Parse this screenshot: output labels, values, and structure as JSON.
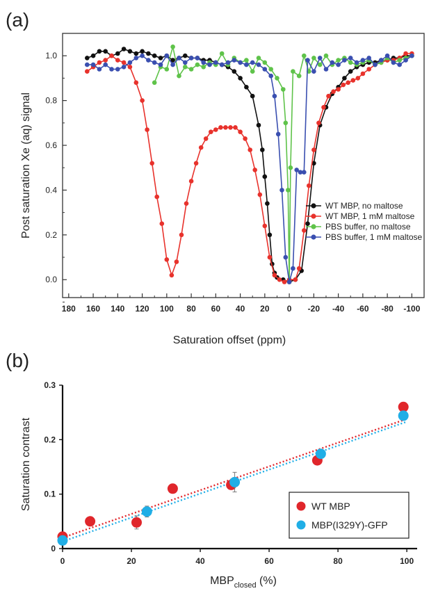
{
  "figure": {
    "panel_a_label": "(a)",
    "panel_b_label": "(b)"
  },
  "colors": {
    "black": "#111111",
    "red": "#e8322c",
    "green": "#5fc34a",
    "blue": "#3a4fb0",
    "cyan": "#20aee6",
    "red_b": "#e0262b"
  },
  "chart_data": [
    {
      "type": "line",
      "title": "",
      "xlabel": "Saturation offset (ppm)",
      "ylabel": "Post saturation Xe (aq) signal",
      "xlim": [
        185,
        -110
      ],
      "ylim": [
        -0.08,
        1.1
      ],
      "xticks": [
        "180",
        "160",
        "140",
        "120",
        "100",
        "80",
        "60",
        "40",
        "20",
        "0",
        "-20",
        "-40",
        "-60",
        "-80",
        "-100"
      ],
      "yticks": [
        "0.0",
        "0.2",
        "0.4",
        "0.6",
        "0.8",
        "1.0"
      ],
      "legend_position": "right",
      "series": [
        {
          "name": "WT MBP, no maltose",
          "color": "#111111",
          "points": [
            [
              165,
              0.99
            ],
            [
              160,
              1.0
            ],
            [
              155,
              1.02
            ],
            [
              150,
              1.02
            ],
            [
              145,
              1.0
            ],
            [
              140,
              1.01
            ],
            [
              135,
              1.03
            ],
            [
              130,
              1.02
            ],
            [
              125,
              1.01
            ],
            [
              120,
              1.02
            ],
            [
              115,
              1.01
            ],
            [
              110,
              1.0
            ],
            [
              105,
              0.99
            ],
            [
              100,
              1.0
            ],
            [
              95,
              0.98
            ],
            [
              90,
              0.99
            ],
            [
              85,
              1.0
            ],
            [
              80,
              0.99
            ],
            [
              75,
              0.99
            ],
            [
              70,
              0.98
            ],
            [
              65,
              0.98
            ],
            [
              60,
              0.97
            ],
            [
              55,
              0.96
            ],
            [
              50,
              0.95
            ],
            [
              45,
              0.93
            ],
            [
              40,
              0.9
            ],
            [
              35,
              0.86
            ],
            [
              30,
              0.82
            ],
            [
              25,
              0.69
            ],
            [
              22,
              0.58
            ],
            [
              20,
              0.46
            ],
            [
              18,
              0.34
            ],
            [
              16,
              0.2
            ],
            [
              14,
              0.07
            ],
            [
              12,
              0.03
            ],
            [
              10,
              0.01
            ],
            [
              5,
              0.0
            ],
            [
              0,
              -0.01
            ],
            [
              -5,
              0.0
            ],
            [
              -10,
              0.04
            ],
            [
              -15,
              0.25
            ],
            [
              -20,
              0.52
            ],
            [
              -25,
              0.69
            ],
            [
              -30,
              0.77
            ],
            [
              -35,
              0.83
            ],
            [
              -40,
              0.86
            ],
            [
              -45,
              0.9
            ],
            [
              -50,
              0.93
            ],
            [
              -55,
              0.95
            ],
            [
              -60,
              0.96
            ],
            [
              -65,
              0.97
            ],
            [
              -70,
              0.97
            ],
            [
              -75,
              0.98
            ],
            [
              -80,
              0.98
            ],
            [
              -85,
              0.99
            ],
            [
              -90,
              0.99
            ],
            [
              -95,
              1.0
            ],
            [
              -100,
              1.0
            ]
          ]
        },
        {
          "name": "WT MBP, 1 mM maltose",
          "color": "#e8322c",
          "points": [
            [
              165,
              0.93
            ],
            [
              160,
              0.95
            ],
            [
              155,
              0.97
            ],
            [
              150,
              0.98
            ],
            [
              145,
              1.0
            ],
            [
              140,
              0.98
            ],
            [
              135,
              0.97
            ],
            [
              130,
              0.95
            ],
            [
              125,
              0.88
            ],
            [
              120,
              0.8
            ],
            [
              116,
              0.67
            ],
            [
              112,
              0.52
            ],
            [
              108,
              0.37
            ],
            [
              104,
              0.25
            ],
            [
              100,
              0.09
            ],
            [
              96,
              0.02
            ],
            [
              92,
              0.08
            ],
            [
              88,
              0.2
            ],
            [
              84,
              0.34
            ],
            [
              80,
              0.44
            ],
            [
              76,
              0.52
            ],
            [
              72,
              0.59
            ],
            [
              68,
              0.63
            ],
            [
              64,
              0.66
            ],
            [
              60,
              0.67
            ],
            [
              56,
              0.68
            ],
            [
              52,
              0.68
            ],
            [
              48,
              0.68
            ],
            [
              44,
              0.68
            ],
            [
              40,
              0.66
            ],
            [
              36,
              0.63
            ],
            [
              32,
              0.58
            ],
            [
              28,
              0.49
            ],
            [
              24,
              0.38
            ],
            [
              20,
              0.24
            ],
            [
              16,
              0.1
            ],
            [
              12,
              0.02
            ],
            [
              8,
              0.0
            ],
            [
              4,
              -0.01
            ],
            [
              0,
              0.0
            ],
            [
              -5,
              0.0
            ],
            [
              -8,
              0.05
            ],
            [
              -12,
              0.22
            ],
            [
              -16,
              0.42
            ],
            [
              -20,
              0.58
            ],
            [
              -24,
              0.7
            ],
            [
              -28,
              0.77
            ],
            [
              -32,
              0.82
            ],
            [
              -36,
              0.84
            ],
            [
              -40,
              0.85
            ],
            [
              -44,
              0.87
            ],
            [
              -48,
              0.88
            ],
            [
              -52,
              0.89
            ],
            [
              -56,
              0.9
            ],
            [
              -60,
              0.92
            ],
            [
              -65,
              0.94
            ],
            [
              -70,
              0.96
            ],
            [
              -75,
              0.97
            ],
            [
              -80,
              0.98
            ],
            [
              -85,
              0.98
            ],
            [
              -90,
              0.99
            ],
            [
              -95,
              1.01
            ],
            [
              -100,
              1.01
            ]
          ]
        },
        {
          "name": "PBS buffer, no maltose",
          "color": "#5fc34a",
          "points": [
            [
              110,
              0.88
            ],
            [
              105,
              0.95
            ],
            [
              100,
              0.94
            ],
            [
              95,
              1.04
            ],
            [
              90,
              0.91
            ],
            [
              85,
              0.95
            ],
            [
              80,
              0.94
            ],
            [
              75,
              0.96
            ],
            [
              70,
              0.95
            ],
            [
              65,
              0.97
            ],
            [
              60,
              0.96
            ],
            [
              55,
              1.01
            ],
            [
              50,
              0.96
            ],
            [
              45,
              0.99
            ],
            [
              40,
              0.97
            ],
            [
              35,
              0.98
            ],
            [
              30,
              0.93
            ],
            [
              25,
              0.99
            ],
            [
              20,
              0.97
            ],
            [
              15,
              0.94
            ],
            [
              10,
              0.9
            ],
            [
              5,
              0.85
            ],
            [
              3,
              0.7
            ],
            [
              1,
              0.4
            ],
            [
              0,
              -0.01
            ],
            [
              -1,
              0.5
            ],
            [
              -3,
              0.93
            ],
            [
              -8,
              0.91
            ],
            [
              -12,
              1.0
            ],
            [
              -16,
              0.93
            ],
            [
              -20,
              0.99
            ],
            [
              -25,
              0.96
            ],
            [
              -30,
              1.0
            ],
            [
              -35,
              0.96
            ],
            [
              -40,
              0.98
            ],
            [
              -45,
              0.99
            ],
            [
              -50,
              0.97
            ],
            [
              -55,
              0.96
            ],
            [
              -60,
              0.97
            ],
            [
              -65,
              0.98
            ],
            [
              -70,
              0.96
            ],
            [
              -75,
              0.97
            ],
            [
              -80,
              0.99
            ],
            [
              -85,
              0.97
            ],
            [
              -90,
              0.98
            ],
            [
              -95,
              0.99
            ],
            [
              -100,
              1.0
            ]
          ]
        },
        {
          "name": "PBS buffer, 1 mM maltose",
          "color": "#3a4fb0",
          "points": [
            [
              165,
              0.96
            ],
            [
              160,
              0.96
            ],
            [
              155,
              0.94
            ],
            [
              150,
              0.96
            ],
            [
              145,
              0.94
            ],
            [
              140,
              0.94
            ],
            [
              135,
              0.95
            ],
            [
              130,
              0.97
            ],
            [
              125,
              0.99
            ],
            [
              120,
              1.0
            ],
            [
              115,
              0.98
            ],
            [
              110,
              0.97
            ],
            [
              105,
              0.96
            ],
            [
              100,
              1.0
            ],
            [
              95,
              0.96
            ],
            [
              90,
              0.99
            ],
            [
              85,
              0.97
            ],
            [
              80,
              0.99
            ],
            [
              75,
              0.99
            ],
            [
              70,
              0.97
            ],
            [
              65,
              0.96
            ],
            [
              60,
              0.97
            ],
            [
              55,
              0.96
            ],
            [
              50,
              0.97
            ],
            [
              45,
              0.98
            ],
            [
              40,
              0.97
            ],
            [
              35,
              0.96
            ],
            [
              30,
              0.97
            ],
            [
              25,
              0.96
            ],
            [
              20,
              0.94
            ],
            [
              15,
              0.91
            ],
            [
              12,
              0.82
            ],
            [
              9,
              0.65
            ],
            [
              6,
              0.4
            ],
            [
              3,
              0.1
            ],
            [
              0,
              -0.01
            ],
            [
              -3,
              0.05
            ],
            [
              -6,
              0.49
            ],
            [
              -9,
              0.48
            ],
            [
              -12,
              0.48
            ],
            [
              -15,
              0.98
            ],
            [
              -20,
              0.93
            ],
            [
              -25,
              0.99
            ],
            [
              -30,
              0.94
            ],
            [
              -35,
              0.97
            ],
            [
              -40,
              0.96
            ],
            [
              -45,
              0.98
            ],
            [
              -50,
              0.99
            ],
            [
              -55,
              0.97
            ],
            [
              -60,
              0.98
            ],
            [
              -65,
              0.99
            ],
            [
              -70,
              0.96
            ],
            [
              -75,
              0.98
            ],
            [
              -80,
              1.0
            ],
            [
              -85,
              0.97
            ],
            [
              -90,
              0.96
            ],
            [
              -95,
              0.98
            ],
            [
              -100,
              1.0
            ]
          ]
        }
      ]
    },
    {
      "type": "scatter",
      "title": "",
      "xlabel_main": "MBP",
      "xlabel_sub": "closed",
      "xlabel_unit": " (%)",
      "ylabel": "Saturation contrast",
      "xlim": [
        0,
        103
      ],
      "ylim": [
        0,
        0.3
      ],
      "xticks": [
        "0",
        "20",
        "40",
        "60",
        "80",
        "100"
      ],
      "yticks": [
        "0",
        "0.1",
        "0.2",
        "0.3"
      ],
      "legend_position": "bottom-right",
      "series": [
        {
          "name": "WT MBP",
          "color": "#e0262b",
          "points": [
            [
              0,
              0.022
            ],
            [
              8,
              0.05
            ],
            [
              21.5,
              0.048
            ],
            [
              32,
              0.11
            ],
            [
              49,
              0.117
            ],
            [
              74,
              0.162
            ],
            [
              99,
              0.26
            ]
          ],
          "errors": [
            0.004,
            0.004,
            0.012,
            0.004,
            0.006,
            0.006,
            0.005
          ],
          "trend": [
            [
              0,
              0.02
            ],
            [
              100,
              0.238
            ]
          ]
        },
        {
          "name": "MBP(I329Y)-GFP",
          "color": "#20aee6",
          "points": [
            [
              0,
              0.015
            ],
            [
              24.5,
              0.068
            ],
            [
              50,
              0.122
            ],
            [
              75,
              0.174
            ],
            [
              99,
              0.244
            ]
          ],
          "errors": [
            0.004,
            0.01,
            0.018,
            0.007,
            0.008
          ],
          "trend": [
            [
              0,
              0.013
            ],
            [
              100,
              0.233
            ]
          ]
        }
      ]
    }
  ]
}
